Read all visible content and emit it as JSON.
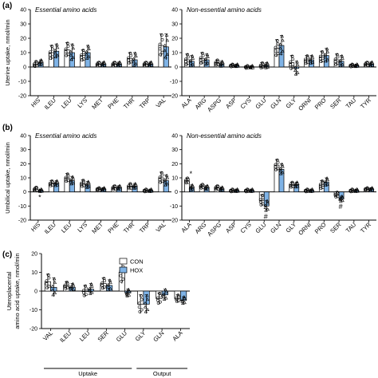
{
  "colors": {
    "con": "#ffffff",
    "hox": "#7fb3e6",
    "stroke": "#000000"
  },
  "legend": {
    "con": "CON",
    "hox": "HOX"
  },
  "chart_data": [
    {
      "id": "a",
      "panel_letter": "(a)",
      "type": "bar",
      "ylabel": "Uterine uptake, nmol/min",
      "ylim": [
        -20,
        40
      ],
      "yticks": [
        -20,
        -10,
        0,
        10,
        20,
        30,
        40
      ],
      "subplots": [
        {
          "title": "Essential amino acids",
          "categories": [
            "HIS",
            "ILEU",
            "LEU",
            "LYS",
            "MET",
            "PHE",
            "THR",
            "TRP",
            "VAL"
          ],
          "series": [
            {
              "name": "CON",
              "values": [
                2,
                10,
                12,
                8,
                2,
                2,
                6,
                2,
                15
              ],
              "errors": [
                2,
                5,
                5,
                4,
                1.5,
                1.5,
                4,
                1.5,
                8
              ]
            },
            {
              "name": "HOX",
              "values": [
                3,
                11,
                10,
                10,
                2,
                2,
                5,
                2,
                14
              ],
              "errors": [
                2,
                5,
                6,
                5,
                1.5,
                1.5,
                5,
                1.5,
                9
              ]
            }
          ],
          "annotations": []
        },
        {
          "title": "Non-essential amino acids",
          "categories": [
            "ALA",
            "ARG",
            "ASPG",
            "ASP",
            "CYS",
            "GLU",
            "GLN",
            "GLY",
            "ORNI",
            "PRO",
            "SER",
            "TAU",
            "TYR"
          ],
          "series": [
            {
              "name": "CON",
              "values": [
                5,
                6,
                3,
                1,
                0,
                1,
                13,
                3,
                5,
                7,
                5,
                1,
                2
              ],
              "errors": [
                4,
                4,
                2,
                1,
                1,
                2,
                6,
                5,
                3,
                4,
                4,
                1,
                1.5
              ]
            },
            {
              "name": "HOX",
              "values": [
                4,
                5,
                2,
                1,
                0,
                1,
                15,
                -1,
                5,
                8,
                4,
                1,
                2
              ],
              "errors": [
                4,
                4,
                2,
                1,
                1,
                2,
                7,
                5,
                3,
                5,
                4,
                1,
                1.5
              ]
            }
          ],
          "annotations": []
        }
      ]
    },
    {
      "id": "b",
      "panel_letter": "(b)",
      "type": "bar",
      "ylabel": "Umbilical uptake, nmol/min",
      "ylim": [
        -20,
        40
      ],
      "yticks": [
        -20,
        -10,
        0,
        10,
        20,
        30,
        40
      ],
      "subplots": [
        {
          "title": "Essential amino acids",
          "categories": [
            "HIS",
            "ILEU",
            "LEU",
            "LYS",
            "MET",
            "PHE",
            "THR",
            "TRP",
            "VAL"
          ],
          "series": [
            {
              "name": "CON",
              "values": [
                2,
                6,
                10,
                6,
                2,
                3,
                4,
                1,
                10
              ],
              "errors": [
                1.5,
                2,
                3,
                2.5,
                1,
                1.5,
                2,
                1,
                4
              ]
            },
            {
              "name": "HOX",
              "values": [
                1,
                6,
                8,
                5,
                2,
                3,
                4,
                1,
                8
              ],
              "errors": [
                1,
                2,
                3,
                2.5,
                1,
                1.5,
                2,
                1,
                4
              ]
            }
          ],
          "annotations": [
            {
              "category": "HIS",
              "text": "*"
            }
          ]
        },
        {
          "title": "Non-essential amino acids",
          "categories": [
            "ALA",
            "ARG",
            "ASPG",
            "ASP",
            "CYS",
            "GLU",
            "GLN",
            "GLY",
            "ORNI",
            "PRO",
            "SER",
            "TAU",
            "TYR"
          ],
          "series": [
            {
              "name": "CON",
              "values": [
                8,
                4,
                3,
                1,
                1,
                -6,
                19,
                5,
                1,
                5,
                -2,
                1,
                2
              ],
              "errors": [
                2,
                1.5,
                1.5,
                1,
                1,
                4,
                4,
                2,
                1,
                3,
                2,
                1,
                1
              ]
            },
            {
              "name": "HOX",
              "values": [
                3,
                3,
                2,
                1,
                1,
                -10,
                16,
                5,
                1,
                7,
                -5,
                1,
                2
              ],
              "errors": [
                2,
                1.5,
                1.5,
                1,
                1,
                4,
                4,
                2,
                1,
                3,
                2,
                1,
                1
              ]
            }
          ],
          "annotations": [
            {
              "category": "ALA",
              "text": "*"
            },
            {
              "category": "GLU",
              "text": "#"
            },
            {
              "category": "SER",
              "text": "#"
            }
          ]
        }
      ]
    },
    {
      "id": "c",
      "panel_letter": "(c)",
      "type": "bar",
      "ylabel": "Uteroplacental amino acid uptake, nmol/min",
      "ylim": [
        -20,
        20
      ],
      "yticks": [
        -20,
        -10,
        0,
        10,
        20
      ],
      "categories": [
        "VAL",
        "ILEU",
        "LEU",
        "SER",
        "GLU",
        "GLY",
        "GLN",
        "ALA"
      ],
      "groups": [
        {
          "label": "Uptake",
          "categories": [
            "VAL",
            "ILEU",
            "LEU",
            "SER",
            "GLU"
          ]
        },
        {
          "label": "Output",
          "categories": [
            "GLY",
            "GLN",
            "ALA"
          ]
        }
      ],
      "series": [
        {
          "name": "CON",
          "values": [
            5,
            3,
            0,
            4,
            10,
            -7,
            -4,
            -4
          ],
          "errors": [
            4,
            2,
            3,
            3,
            6,
            5,
            3,
            2
          ]
        },
        {
          "name": "HOX",
          "values": [
            2,
            2,
            1,
            3,
            -1,
            -7,
            -2,
            -5
          ],
          "errors": [
            5,
            2,
            3,
            3,
            2,
            5,
            3,
            2
          ]
        }
      ],
      "annotations": [
        {
          "category": "GLU",
          "text": "*"
        }
      ]
    }
  ]
}
